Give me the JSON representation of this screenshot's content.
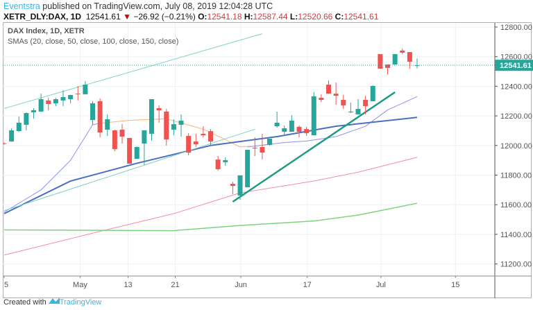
{
  "header": {
    "author": "Eventstra",
    "published": " published on TradingView.com, July 08, 2019 12:04:28 UTC",
    "symbol": "XETR_DLY:DAX, 1D",
    "last": "12541.61",
    "change_icon": "down-triangle-icon",
    "change": "−26.92 (−0.21%)",
    "o_label": "O:",
    "o": "12541.18",
    "h_label": "H:",
    "h": "12587.44",
    "l_label": "L:",
    "l": "12520.66",
    "c_label": "C:",
    "c": "12541.61"
  },
  "legend": {
    "title": "DAX Index, 1D, XETR",
    "studies": "SMAs (20, close, 50, close, 100, close, 150, close)"
  },
  "footer": {
    "prefix": "Created with",
    "brand": "TradingView"
  },
  "colors": {
    "up": "#26a69a",
    "down": "#ef5350",
    "sma20": "#8f8ff5",
    "sma20_alt": "#ffb26b",
    "sma50": "#4a6fc0",
    "sma100": "#f28ca6",
    "sma150": "#7cd37c",
    "trend": "#7fd0c2",
    "trend_bold": "#1e9c82",
    "price_label": "#26a69a"
  },
  "chart_data": {
    "type": "candlestick",
    "title": "DAX Index, 1D, XETR",
    "ylim": [
      11100,
      12830
    ],
    "y_ticks": [
      "12800.00",
      "12600.00",
      "12400.00",
      "12200.00",
      "12000.00",
      "11800.00",
      "11600.00",
      "11400.00",
      "11200.00"
    ],
    "y_tick_values": [
      12800,
      12600,
      12400,
      12200,
      12000,
      11800,
      11600,
      11400,
      11200
    ],
    "x_ticks": [
      {
        "label": "5",
        "i": 0
      },
      {
        "label": "May",
        "i": 10.3
      },
      {
        "label": "13",
        "i": 16.8
      },
      {
        "label": "21",
        "i": 23.2
      },
      {
        "label": "Jun",
        "i": 32.1
      },
      {
        "label": "17",
        "i": 41.1
      },
      {
        "label": "Jul",
        "i": 51.1
      },
      {
        "label": "15",
        "i": 61.2
      }
    ],
    "x_range": [
      0,
      66.5
    ],
    "last_price": 12541.61,
    "last_price_label": "12541.61",
    "ohlc": [
      [
        12015,
        12020,
        12005,
        12013
      ],
      [
        12027,
        12116,
        12027,
        12102
      ],
      [
        12097,
        12196,
        12093,
        12154
      ],
      [
        12140,
        12224,
        12102,
        12219
      ],
      [
        12224,
        12252,
        12182,
        12238
      ],
      [
        12229,
        12350,
        12229,
        12313
      ],
      [
        12304,
        12322,
        12238,
        12280
      ],
      [
        12285,
        12322,
        12266,
        12313
      ],
      [
        12304,
        12374,
        12266,
        12327
      ],
      [
        12313,
        12341,
        12285,
        12341
      ],
      [
        12350,
        12402,
        12304,
        12346
      ],
      [
        12346,
        12435,
        12346,
        12411
      ],
      [
        12172,
        12299,
        12140,
        12285
      ],
      [
        12299,
        12318,
        12055,
        12088
      ],
      [
        12107,
        12210,
        12065,
        12177
      ],
      [
        12102,
        12107,
        11962,
        11976
      ],
      [
        12107,
        12144,
        12013,
        12060
      ],
      [
        12051,
        12051,
        11877,
        11877
      ],
      [
        11910,
        11994,
        11910,
        11990
      ],
      [
        12013,
        12102,
        11868,
        12102
      ],
      [
        12079,
        12313,
        12032,
        12313
      ],
      [
        12252,
        12271,
        12154,
        12238
      ],
      [
        12229,
        12247,
        11999,
        12041
      ],
      [
        12107,
        12177,
        12069,
        12144
      ],
      [
        12140,
        12210,
        12060,
        12168
      ],
      [
        12065,
        12084,
        11933,
        11952
      ],
      [
        12027,
        12079,
        11990,
        12008
      ],
      [
        12079,
        12130,
        12055,
        12069
      ],
      [
        12097,
        12111,
        11994,
        12027
      ],
      [
        11905,
        11929,
        11830,
        11840
      ],
      [
        11887,
        11919,
        11863,
        11901
      ],
      [
        11741,
        11755,
        11671,
        11727
      ],
      [
        11662,
        11798,
        11634,
        11798
      ],
      [
        11718,
        11971,
        11718,
        11971
      ],
      [
        11985,
        12055,
        11929,
        11980
      ],
      [
        11990,
        12079,
        11905,
        11952
      ],
      [
        12004,
        12046,
        11999,
        12046
      ],
      [
        12130,
        12229,
        12121,
        12154
      ],
      [
        12093,
        12135,
        12069,
        12116
      ],
      [
        12093,
        12205,
        12093,
        12168
      ],
      [
        12126,
        12135,
        12055,
        12093
      ],
      [
        12111,
        12126,
        12065,
        12083
      ],
      [
        12069,
        12360,
        12069,
        12332
      ],
      [
        12322,
        12346,
        12294,
        12308
      ],
      [
        12411,
        12439,
        12350,
        12350
      ],
      [
        12350,
        12425,
        12275,
        12336
      ],
      [
        12308,
        12341,
        12247,
        12271
      ],
      [
        12224,
        12289,
        12219,
        12229
      ],
      [
        12210,
        12313,
        12210,
        12247
      ],
      [
        12308,
        12336,
        12210,
        12266
      ],
      [
        12299,
        12407,
        12299,
        12402
      ],
      [
        12617,
        12617,
        12519,
        12519
      ],
      [
        12547,
        12547,
        12481,
        12524
      ],
      [
        12547,
        12617,
        12547,
        12617
      ],
      [
        12641,
        12655,
        12617,
        12627
      ],
      [
        12631,
        12631,
        12519,
        12566
      ],
      [
        12541.18,
        12587.44,
        12520.66,
        12541.61
      ]
    ],
    "series": [
      {
        "name": "SMA 20",
        "color_key": "sma20",
        "points": [
          [
            0,
            11550
          ],
          [
            5,
            11700
          ],
          [
            9,
            11900
          ],
          [
            12,
            12140
          ],
          [
            13,
            12150
          ]
        ]
      },
      {
        "name": "SMA 20 (segment)",
        "color_key": "sma20_alt",
        "points": [
          [
            13,
            12150
          ],
          [
            17,
            12170
          ],
          [
            22,
            12180
          ],
          [
            27,
            12110
          ],
          [
            30,
            12040
          ],
          [
            32,
            11990
          ],
          [
            34,
            11995
          ],
          [
            36,
            12010
          ]
        ]
      },
      {
        "name": "SMA 20 (recent)",
        "color_key": "sma20",
        "points": [
          [
            33,
            11990
          ],
          [
            38,
            12020
          ],
          [
            41,
            12030
          ],
          [
            45,
            12060
          ],
          [
            49,
            12130
          ],
          [
            52,
            12240
          ],
          [
            56,
            12330
          ]
        ]
      },
      {
        "name": "SMA 50",
        "color_key": "sma50",
        "width": 2,
        "points": [
          [
            0,
            11540
          ],
          [
            9,
            11760
          ],
          [
            18,
            11880
          ],
          [
            28,
            12000
          ],
          [
            37,
            12060
          ],
          [
            45,
            12130
          ],
          [
            56,
            12190
          ]
        ]
      },
      {
        "name": "SMA 100",
        "color_key": "sma100",
        "points": [
          [
            0,
            11260
          ],
          [
            13,
            11420
          ],
          [
            23,
            11540
          ],
          [
            32,
            11680
          ],
          [
            42,
            11760
          ],
          [
            48,
            11820
          ],
          [
            56,
            11920
          ]
        ]
      },
      {
        "name": "SMA 150",
        "color_key": "sma150",
        "width": 1.5,
        "points": [
          [
            0,
            11430
          ],
          [
            23,
            11425
          ],
          [
            32,
            11460
          ],
          [
            42,
            11490
          ],
          [
            48,
            11530
          ],
          [
            56,
            11610
          ]
        ]
      }
    ],
    "trendlines": [
      {
        "name": "upper-channel",
        "color_key": "trend",
        "width": 1,
        "points": [
          [
            0,
            12250
          ],
          [
            35,
            12755
          ]
        ]
      },
      {
        "name": "lower-channel",
        "color_key": "trend",
        "width": 1,
        "points": [
          [
            0,
            11560
          ],
          [
            34,
            12110
          ]
        ]
      },
      {
        "name": "support-trendline",
        "color_key": "trend_bold",
        "width": 2.5,
        "points": [
          [
            31,
            11620
          ],
          [
            53,
            12360
          ]
        ]
      }
    ]
  }
}
